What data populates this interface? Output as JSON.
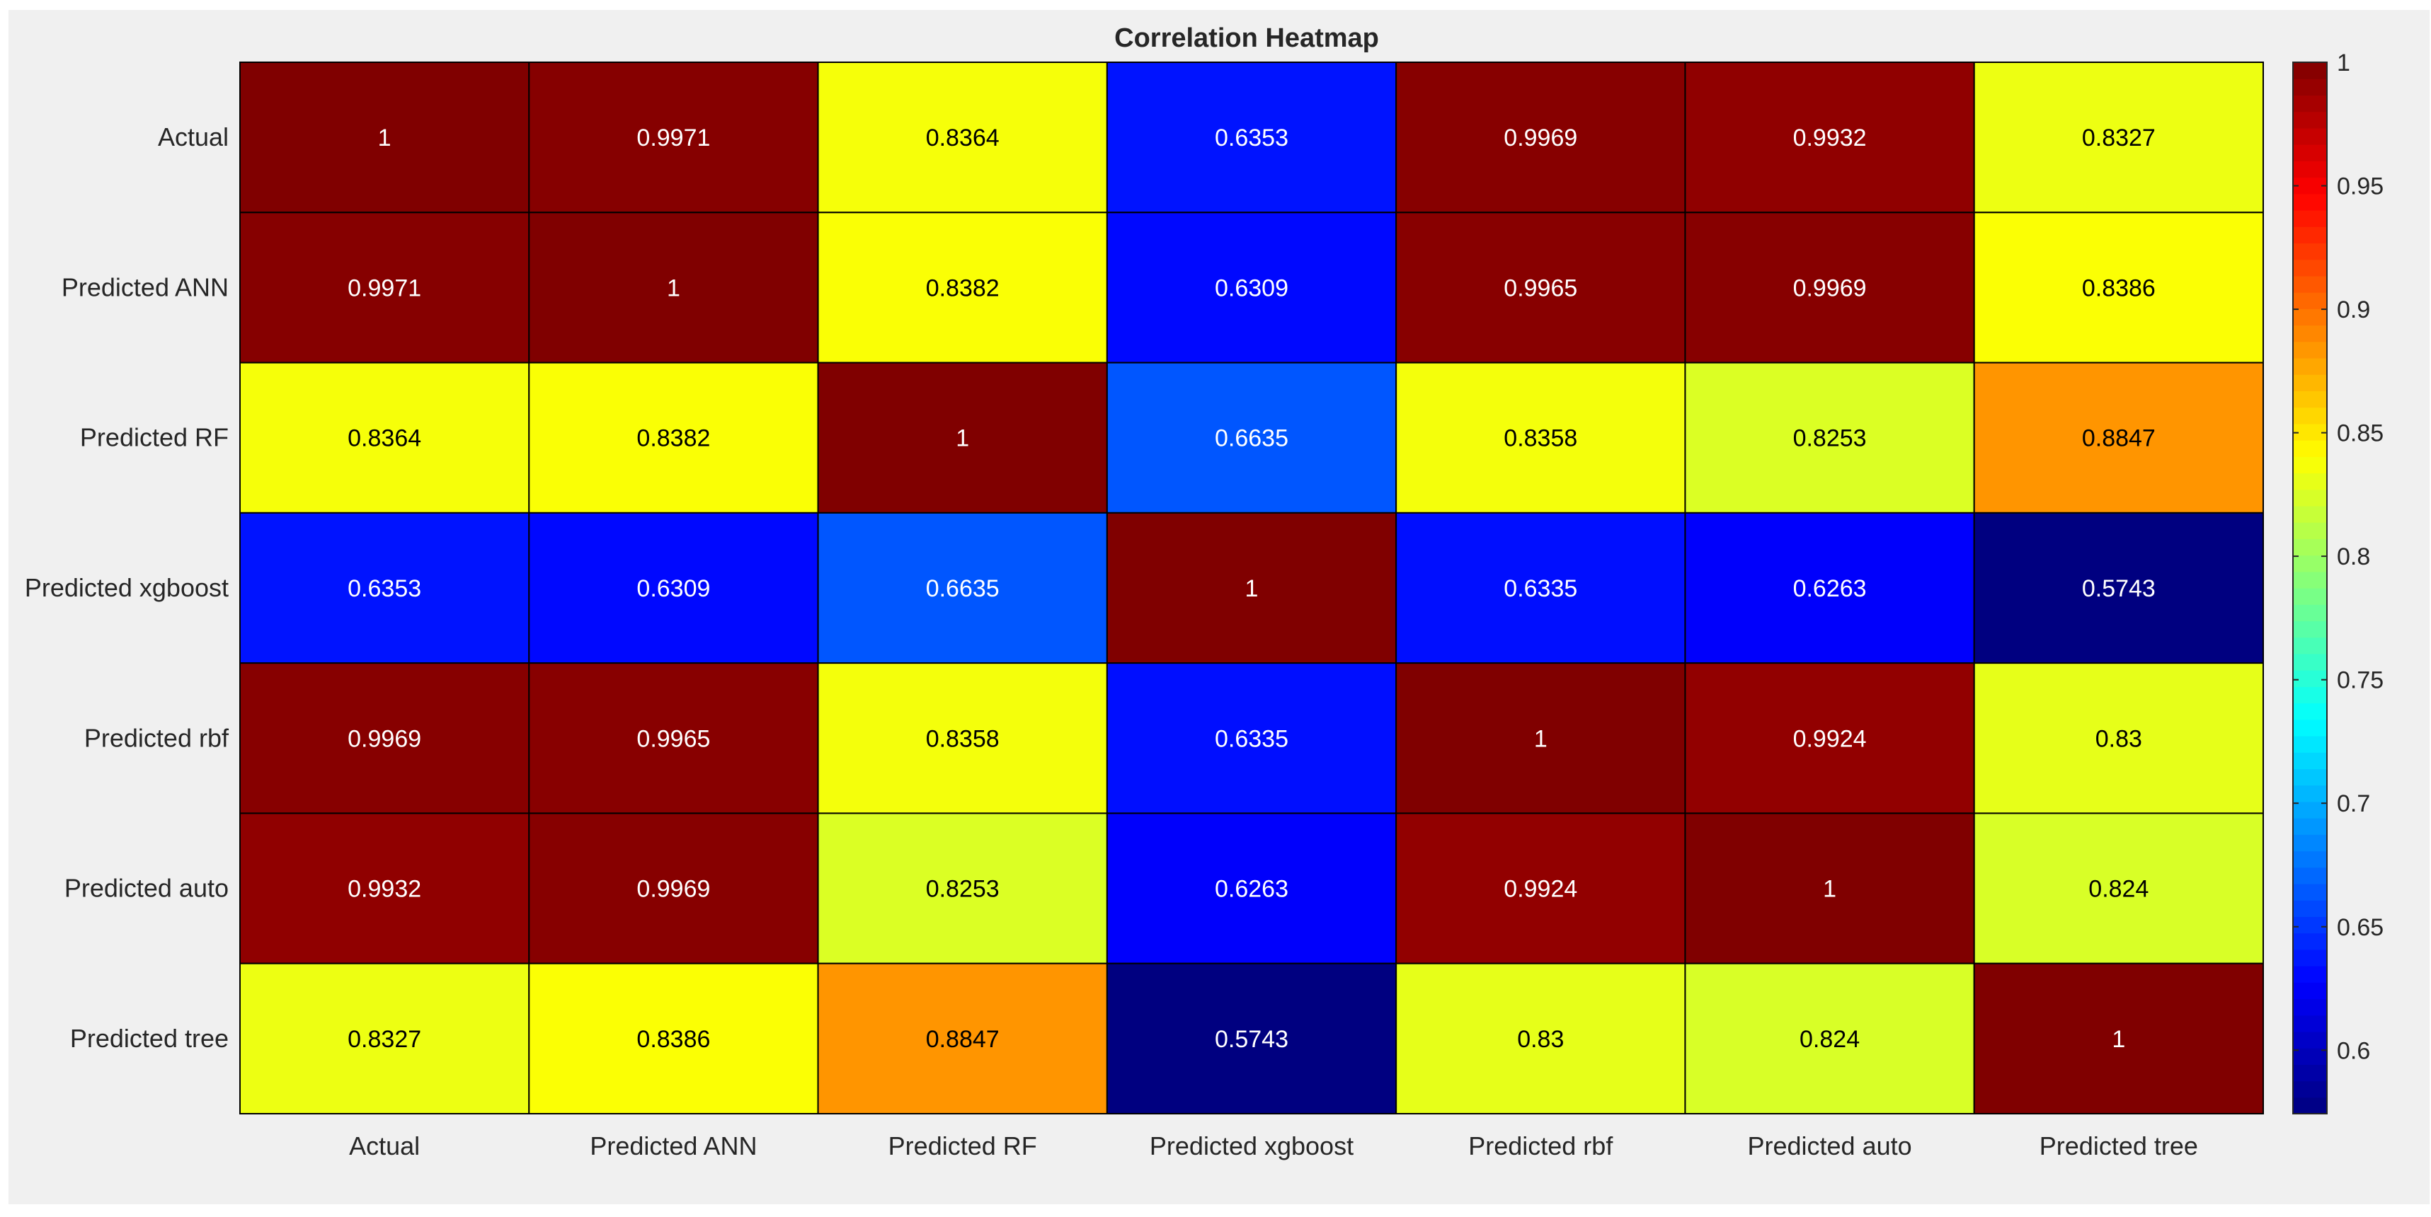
{
  "chart_data": {
    "type": "heatmap",
    "title": "Correlation Heatmap",
    "xlabel": "",
    "ylabel": "",
    "x_categories": [
      "Actual",
      "Predicted ANN",
      "Predicted RF",
      "Predicted xgboost",
      "Predicted rbf",
      "Predicted auto",
      "Predicted tree"
    ],
    "y_categories": [
      "Actual",
      "Predicted ANN",
      "Predicted RF",
      "Predicted xgboost",
      "Predicted rbf",
      "Predicted auto",
      "Predicted tree"
    ],
    "values": [
      [
        1,
        0.9971,
        0.8364,
        0.6353,
        0.9969,
        0.9932,
        0.8327
      ],
      [
        0.9971,
        1,
        0.8382,
        0.6309,
        0.9965,
        0.9969,
        0.8386
      ],
      [
        0.8364,
        0.8382,
        1,
        0.6635,
        0.8358,
        0.8253,
        0.8847
      ],
      [
        0.6353,
        0.6309,
        0.6635,
        1,
        0.6335,
        0.6263,
        0.5743
      ],
      [
        0.9969,
        0.9965,
        0.8358,
        0.6335,
        1,
        0.9924,
        0.83
      ],
      [
        0.9932,
        0.9969,
        0.8253,
        0.6263,
        0.9924,
        1,
        0.824
      ],
      [
        0.8327,
        0.8386,
        0.8847,
        0.5743,
        0.83,
        0.824,
        1
      ]
    ],
    "colormap": "jet",
    "color_limits": [
      0.5743,
      1
    ],
    "colorbar": {
      "position": "right",
      "ticks": [
        0.6,
        0.65,
        0.7,
        0.75,
        0.8,
        0.85,
        0.9,
        0.95,
        1
      ],
      "tick_labels": [
        "0.6",
        "0.65",
        "0.7",
        "0.75",
        "0.8",
        "0.85",
        "0.9",
        "0.95",
        "1"
      ]
    },
    "grid": true
  },
  "colors": {
    "figure_background": "#f0f0f0",
    "grid_line": "#000000",
    "text": "#262626"
  }
}
